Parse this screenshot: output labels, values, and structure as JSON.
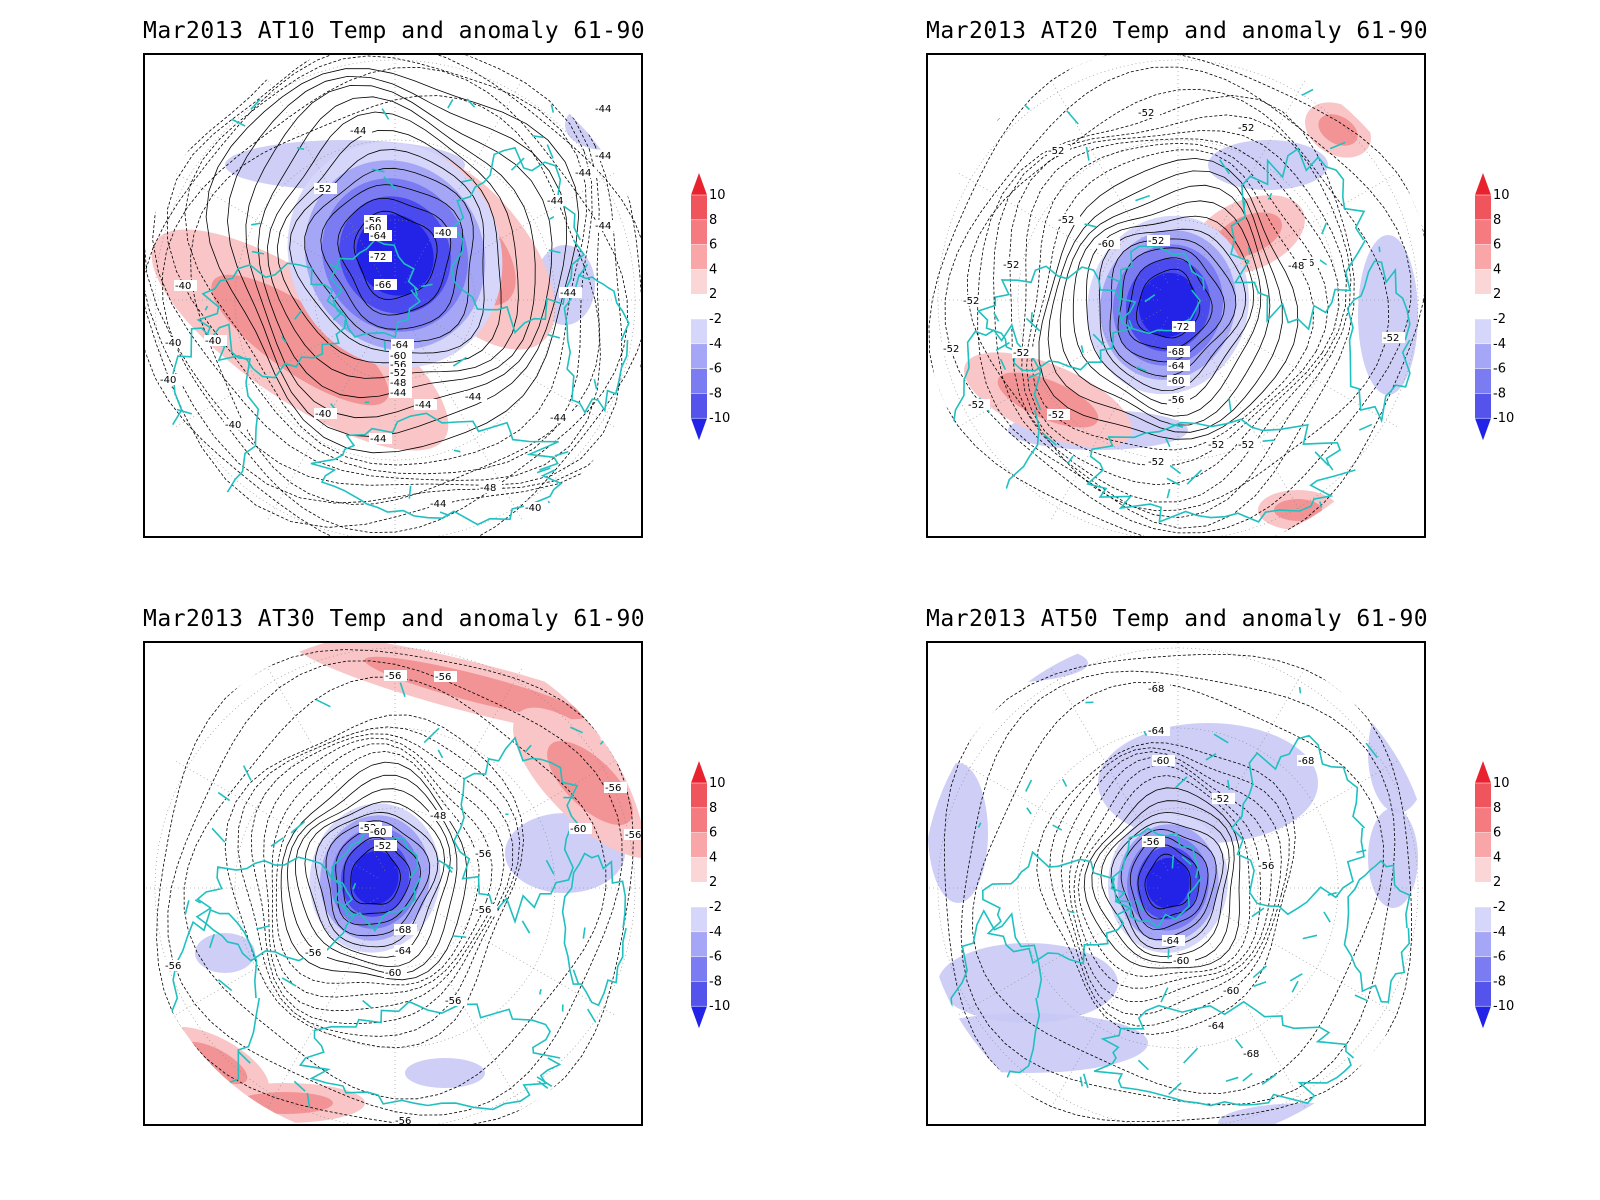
{
  "panels": [
    {
      "title": "Mar2013 AT10 Temp and anomaly 61-90",
      "labels": [
        "-44",
        "-44",
        "-44",
        "-44",
        "-44",
        "-44",
        "-44",
        "-40",
        "-40",
        "-40",
        "-40",
        "-40",
        "-40",
        "-40",
        "-44",
        "-44",
        "-44",
        "-48",
        "-52",
        "-56",
        "-60",
        "-64",
        "-72",
        "-66",
        "-64",
        "-60",
        "-56",
        "-52",
        "-48",
        "-44",
        "-44",
        "-40",
        "-44"
      ]
    },
    {
      "title": "Mar2013 AT20 Temp and anomaly 61-90",
      "labels": [
        "-52",
        "-52",
        "-52",
        "-52",
        "-52",
        "-52",
        "-52",
        "-52",
        "-52",
        "-52",
        "-56",
        "-60",
        "-52",
        "-48",
        "-72",
        "-68",
        "-64",
        "-60",
        "-56",
        "-52",
        "-52",
        "-52",
        "-52"
      ]
    },
    {
      "title": "Mar2013 AT30 Temp and anomaly 61-90",
      "labels": [
        "-56",
        "-56",
        "-56",
        "-60",
        "-56",
        "-56",
        "-52",
        "-48",
        "-56",
        "-60",
        "-52",
        "-56",
        "-68",
        "-64",
        "-60",
        "-56",
        "-56",
        "-56"
      ]
    },
    {
      "title": "Mar2013 AT50 Temp and anomaly 61-90",
      "labels": [
        "-68",
        "-64",
        "-60",
        "-68",
        "-52",
        "-56",
        "-56",
        "-64",
        "-60",
        "-60",
        "-64",
        "-68"
      ]
    }
  ],
  "colorbar": {
    "ticks": [
      "10",
      "8",
      "6",
      "4",
      "2",
      "-2",
      "-4",
      "-6",
      "-8",
      "-10"
    ],
    "colors": [
      "#e8232f",
      "#f0545d",
      "#f57b80",
      "#f8a6a8",
      "#fbd6d6",
      "#ffffff",
      "#d6d6fb",
      "#a6a6f6",
      "#7b7bf2",
      "#5454ed",
      "#2323e8"
    ]
  },
  "colors": {
    "coast": "#20c0c0",
    "contour": "#000000",
    "anomaly_warm": "#f28f92",
    "anomaly_cold": "#1f1fe6",
    "anomaly_cool": "#c9c9f5"
  }
}
